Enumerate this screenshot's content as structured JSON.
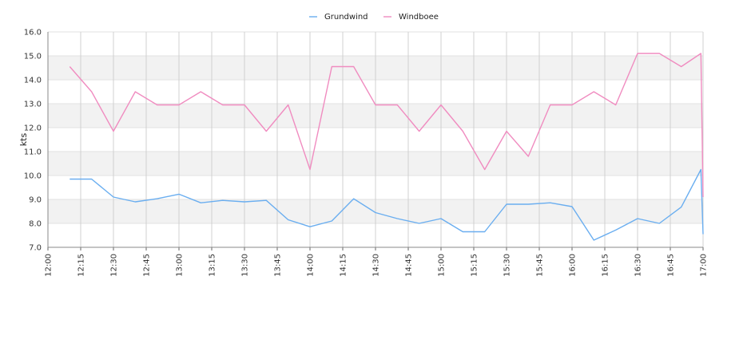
{
  "chart_data": {
    "type": "line",
    "title": "",
    "xlabel": "",
    "ylabel": "kts",
    "ylim": [
      7.0,
      16.0
    ],
    "xlim": [
      "12:00",
      "17:00"
    ],
    "y_ticks": [
      "7.0",
      "8.0",
      "9.0",
      "10.0",
      "11.0",
      "12.0",
      "13.0",
      "14.0",
      "15.0",
      "16.0"
    ],
    "x_ticks": [
      "12:00",
      "12:15",
      "12:30",
      "12:45",
      "13:00",
      "13:15",
      "13:30",
      "13:45",
      "14:00",
      "14:15",
      "14:30",
      "14:45",
      "15:00",
      "15:15",
      "15:30",
      "15:45",
      "16:00",
      "16:15",
      "16:30",
      "16:45",
      "17:00"
    ],
    "grid": true,
    "legend_position": "top-center",
    "x": [
      "12:10",
      "12:20",
      "12:30",
      "12:40",
      "12:50",
      "13:00",
      "13:10",
      "13:20",
      "13:30",
      "13:40",
      "13:50",
      "14:00",
      "14:10",
      "14:20",
      "14:30",
      "14:40",
      "14:50",
      "15:00",
      "15:10",
      "15:20",
      "15:30",
      "15:40",
      "15:50",
      "16:00",
      "16:10",
      "16:20",
      "16:30",
      "16:40",
      "16:50",
      "16:59",
      "17:00"
    ],
    "series": [
      {
        "name": "Grundwind",
        "color": "#6aaef0",
        "values": [
          9.85,
          9.85,
          9.1,
          8.9,
          9.03,
          9.22,
          8.86,
          8.96,
          8.9,
          8.96,
          8.15,
          7.86,
          8.1,
          9.03,
          8.45,
          8.2,
          8.0,
          8.2,
          7.65,
          7.65,
          8.8,
          8.8,
          8.86,
          8.7,
          7.3,
          7.72,
          8.2,
          8.0,
          8.68,
          10.25,
          7.55
        ]
      },
      {
        "name": "Windboee",
        "color": "#f08cc0",
        "values": [
          14.55,
          13.5,
          11.85,
          13.5,
          12.95,
          12.95,
          13.5,
          12.95,
          12.95,
          11.85,
          12.95,
          10.25,
          14.55,
          14.55,
          12.95,
          12.95,
          11.85,
          12.95,
          11.85,
          10.25,
          11.85,
          10.8,
          12.95,
          12.95,
          13.5,
          12.95,
          15.1,
          15.1,
          14.55,
          15.1,
          9.1
        ]
      }
    ]
  }
}
